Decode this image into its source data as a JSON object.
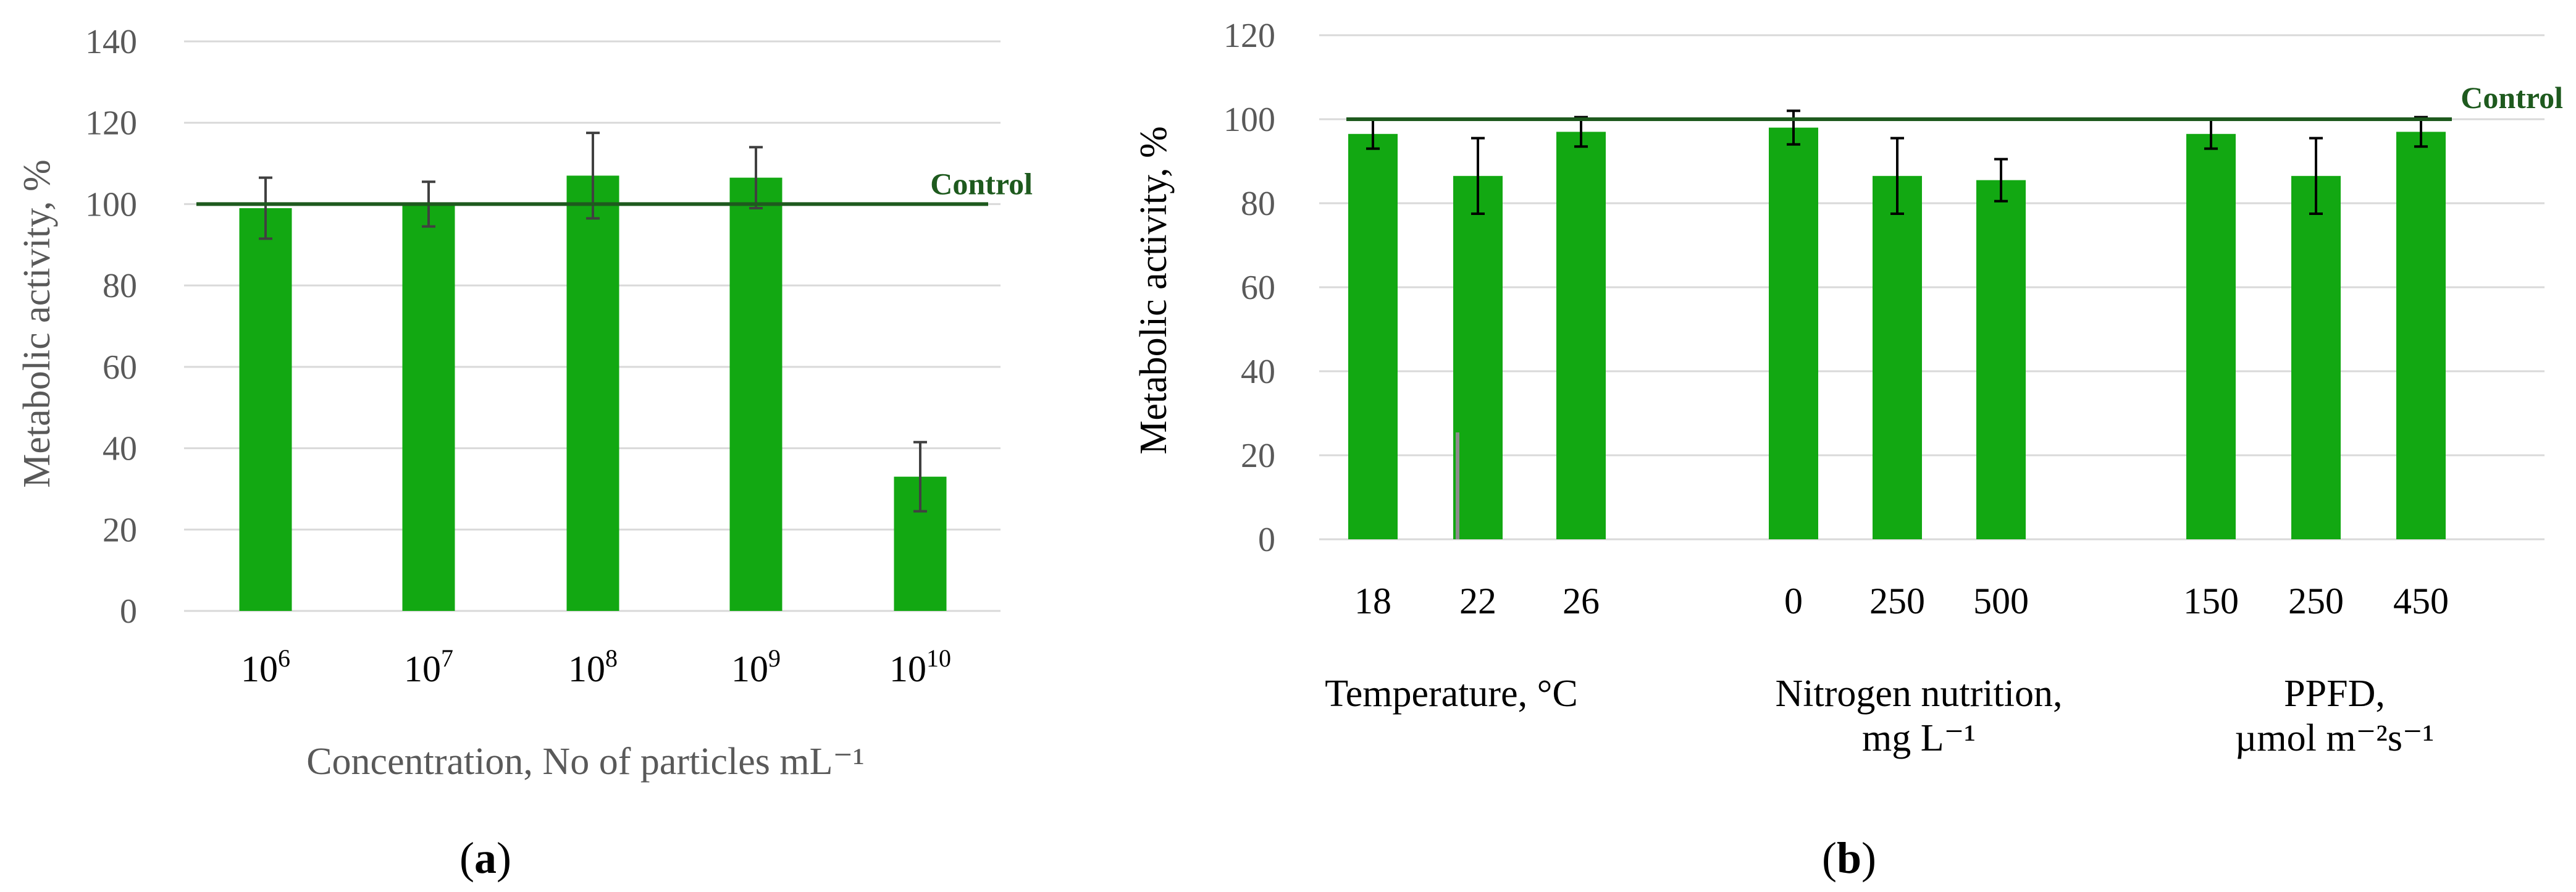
{
  "colors": {
    "bar": "#12a812",
    "control_line": "#1e5a1e",
    "gridline": "#d9d9d9",
    "error_bar": "#404040",
    "tick_text": "#595959"
  },
  "chart_data": [
    {
      "panel": "a",
      "panel_label": "(a)",
      "type": "bar",
      "ylabel": "Metabolic activity, %",
      "xlabel": "Concentration, No of particles mL⁻¹",
      "ylim": [
        0,
        140
      ],
      "yticks": [
        "0",
        "20",
        "40",
        "60",
        "80",
        "100",
        "120",
        "140"
      ],
      "grid": true,
      "categories": [
        {
          "base": "10",
          "exp": "6"
        },
        {
          "base": "10",
          "exp": "7"
        },
        {
          "base": "10",
          "exp": "8"
        },
        {
          "base": "10",
          "exp": "9"
        },
        {
          "base": "10",
          "exp": "10"
        }
      ],
      "values": [
        99,
        100,
        107,
        106.5,
        33
      ],
      "errors": [
        7.5,
        5.5,
        10.5,
        7.5,
        8.5
      ],
      "control": {
        "value": 100,
        "label": "Control"
      }
    },
    {
      "panel": "b",
      "panel_label": "(b)",
      "type": "bar",
      "ylabel": "Metabolic activity, %",
      "ylim": [
        0,
        120
      ],
      "yticks": [
        "0",
        "20",
        "40",
        "60",
        "80",
        "100",
        "120"
      ],
      "grid": true,
      "groups": [
        {
          "title_lines": [
            "Temperature, °C"
          ],
          "categories": [
            "18",
            "22",
            "26"
          ],
          "values": [
            96.5,
            86.5,
            97
          ],
          "errors": [
            3.5,
            9,
            3.5
          ]
        },
        {
          "title_lines": [
            "Nitrogen nutrition,",
            "mg L⁻¹"
          ],
          "categories": [
            "0",
            "250",
            "500"
          ],
          "values": [
            98,
            86.5,
            85.5
          ],
          "errors": [
            4,
            9,
            5
          ]
        },
        {
          "title_lines": [
            "PPFD,",
            "µmol m⁻²s⁻¹"
          ],
          "categories": [
            "150",
            "250",
            "450"
          ],
          "values": [
            96.5,
            86.5,
            97
          ],
          "errors": [
            3.5,
            9,
            3.5
          ]
        }
      ],
      "control": {
        "value": 100,
        "label": "Control"
      }
    }
  ]
}
